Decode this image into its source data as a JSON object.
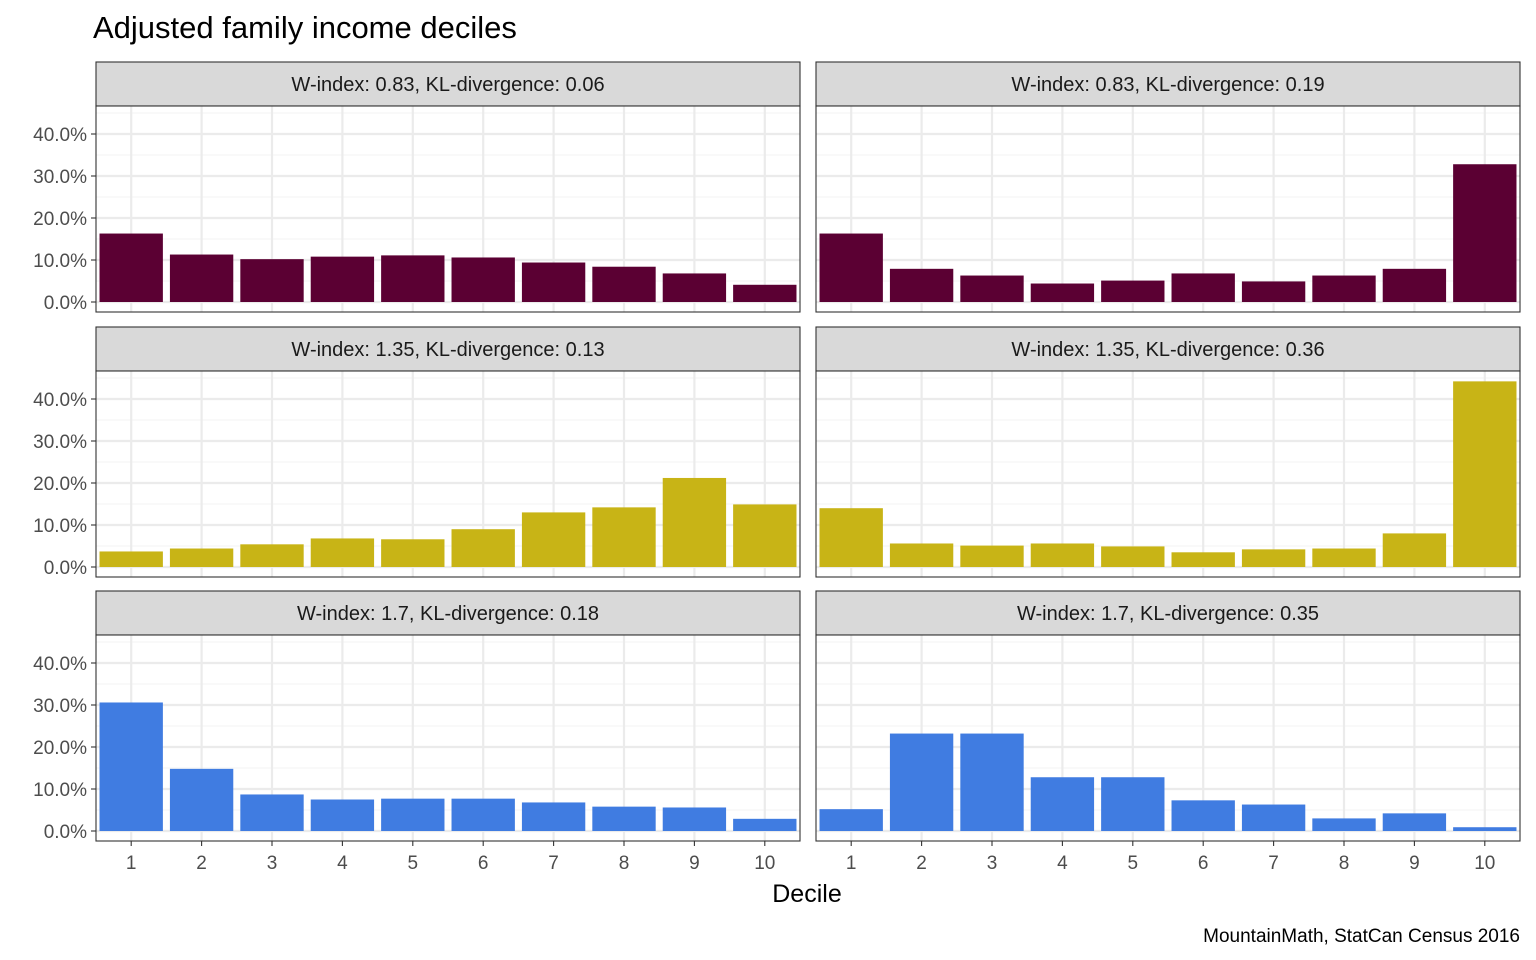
{
  "chart_data": {
    "type": "bar",
    "title": "Adjusted family income deciles",
    "xlabel": "Decile",
    "ylabel": "",
    "caption": "MountainMath, StatCan Census 2016",
    "categories": [
      "1",
      "2",
      "3",
      "4",
      "5",
      "6",
      "7",
      "8",
      "9",
      "10"
    ],
    "ylim": [
      0,
      46
    ],
    "y_ticks": [
      "0.0%",
      "10.0%",
      "20.0%",
      "30.0%",
      "40.0%"
    ],
    "y_tick_values": [
      0,
      10,
      20,
      30,
      40
    ],
    "grid": true,
    "facets": [
      {
        "label": "W-index: 0.83, KL-divergence: 0.06",
        "color": "#5b0033",
        "values": [
          16.3,
          11.3,
          10.2,
          10.8,
          11.1,
          10.6,
          9.4,
          8.4,
          6.8,
          4.1
        ]
      },
      {
        "label": "W-index: 0.83, KL-divergence: 0.19",
        "color": "#5b0033",
        "values": [
          16.3,
          7.9,
          6.3,
          4.4,
          5.1,
          6.8,
          4.9,
          6.3,
          7.9,
          32.8
        ]
      },
      {
        "label": "W-index: 1.35, KL-divergence: 0.13",
        "color": "#c8b416",
        "values": [
          3.7,
          4.4,
          5.4,
          6.8,
          6.6,
          9.0,
          13.0,
          14.2,
          21.2,
          14.9
        ]
      },
      {
        "label": "W-index: 1.35, KL-divergence: 0.36",
        "color": "#c8b416",
        "values": [
          14.0,
          5.6,
          5.1,
          5.6,
          4.9,
          3.5,
          4.2,
          4.4,
          8.0,
          44.2
        ]
      },
      {
        "label": "W-index: 1.7, KL-divergence: 0.18",
        "color": "#407ce1",
        "values": [
          30.6,
          14.8,
          8.7,
          7.5,
          7.7,
          7.7,
          6.8,
          5.8,
          5.6,
          2.9
        ]
      },
      {
        "label": "W-index: 1.7, KL-divergence: 0.35",
        "color": "#407ce1",
        "values": [
          5.2,
          23.2,
          23.2,
          12.8,
          12.8,
          7.3,
          6.3,
          3.0,
          4.2,
          0.9
        ]
      }
    ]
  }
}
